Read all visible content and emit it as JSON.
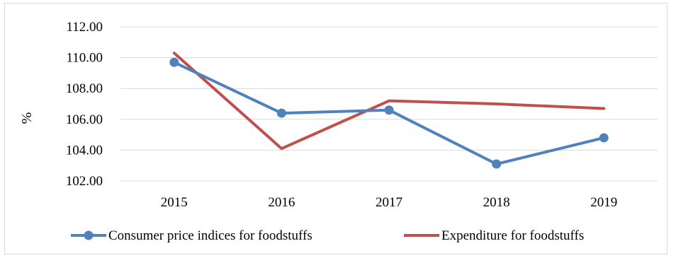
{
  "chart_data": {
    "type": "line",
    "categories": [
      "2015",
      "2016",
      "2017",
      "2018",
      "2019"
    ],
    "series": [
      {
        "name": "Consumer price indices for foodstuffs",
        "values": [
          109.7,
          106.4,
          106.6,
          103.1,
          104.8
        ],
        "color": "#4f81bd",
        "markers": true
      },
      {
        "name": "Expenditure for foodstuffs",
        "values": [
          110.3,
          104.1,
          107.2,
          107.0,
          106.7
        ],
        "color": "#c0504d",
        "markers": false
      }
    ],
    "ylabel": "%",
    "ylim": [
      102,
      112
    ],
    "yticks": [
      "102.00",
      "104.00",
      "106.00",
      "108.00",
      "110.00",
      "112.00"
    ],
    "grid": true,
    "legend_position": "bottom"
  }
}
